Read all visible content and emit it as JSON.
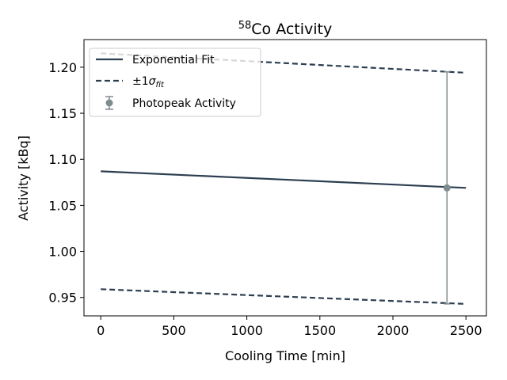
{
  "chart_data": {
    "type": "line",
    "title": {
      "superscript": "58",
      "text": "Co Activity"
    },
    "xlabel": "Cooling Time [min]",
    "ylabel": "Activity [kBq]",
    "xlim": [
      -115,
      2640
    ],
    "ylim": [
      0.93,
      1.23
    ],
    "xticks": [
      0,
      500,
      1000,
      1500,
      2000,
      2500
    ],
    "xtick_labels": [
      "0",
      "500",
      "1000",
      "1500",
      "2000",
      "2500"
    ],
    "yticks": [
      0.95,
      1.0,
      1.05,
      1.1,
      1.15,
      1.2
    ],
    "ytick_labels": [
      "0.95",
      "1.00",
      "1.05",
      "1.10",
      "1.15",
      "1.20"
    ],
    "grid": false,
    "legend_position": "top-left",
    "colors": {
      "fit": "#2c3e50",
      "photopeak": "#7f8c8d"
    },
    "series": [
      {
        "name": "Exponential Fit",
        "style": "solid",
        "x": [
          0,
          2500
        ],
        "y": [
          1.087,
          1.069
        ]
      },
      {
        "name": "±1σ_fit",
        "style": "dashed",
        "x": [
          0,
          2500
        ],
        "y": [
          1.215,
          1.194
        ]
      },
      {
        "name": "",
        "style": "dashed",
        "x": [
          0,
          2500
        ],
        "y": [
          0.959,
          0.943
        ]
      }
    ],
    "points": [
      {
        "name": "Photopeak Activity",
        "x": 2370,
        "y": 1.069,
        "yerr": 0.126
      }
    ],
    "legend": [
      {
        "text": "Exponential Fit",
        "marker": "solid-line"
      },
      {
        "text": "±1",
        "symbol": "σ",
        "subscript": "fit",
        "marker": "dashed-line"
      },
      {
        "text": "Photopeak Activity",
        "marker": "errorbar-point"
      }
    ]
  }
}
